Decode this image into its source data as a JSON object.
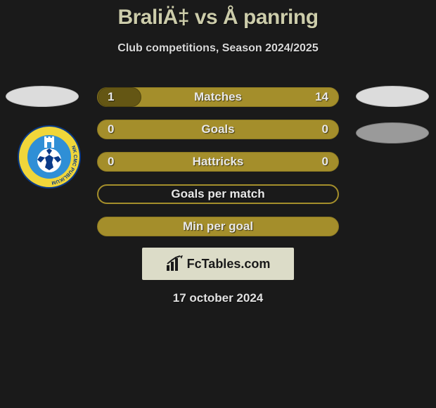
{
  "header": {
    "title": "BraliÄ‡ vs Å panring",
    "subtitle": "Club competitions, Season 2024/2025",
    "title_color": "#ccccaa",
    "subtitle_color": "#d8d8d8"
  },
  "stats": {
    "rows": [
      {
        "label": "Matches",
        "left": "1",
        "right": "14",
        "fill_pct": 18,
        "type": "split"
      },
      {
        "label": "Goals",
        "left": "0",
        "right": "0",
        "fill_pct": 0,
        "type": "split"
      },
      {
        "label": "Hattricks",
        "left": "0",
        "right": "0",
        "fill_pct": 0,
        "type": "split"
      },
      {
        "label": "Goals per match",
        "left": "",
        "right": "",
        "fill_pct": 0,
        "type": "outline"
      },
      {
        "label": "Min per goal",
        "left": "",
        "right": "",
        "fill_pct": 0,
        "type": "solid"
      }
    ],
    "bar_color": "#a48e2b",
    "fill_color": "#645614",
    "text_color": "#e8e8e8"
  },
  "footer": {
    "brand": "FcTables.com",
    "date": "17 october 2024"
  },
  "badges": {
    "left_club_name": "nk-cmc-publikum-badge"
  },
  "colors": {
    "background": "#1a1a1a",
    "ellipse_light": "#dcdcdc",
    "ellipse_dark": "#9a9a9a",
    "logo_box_bg": "#dcdcc8"
  }
}
